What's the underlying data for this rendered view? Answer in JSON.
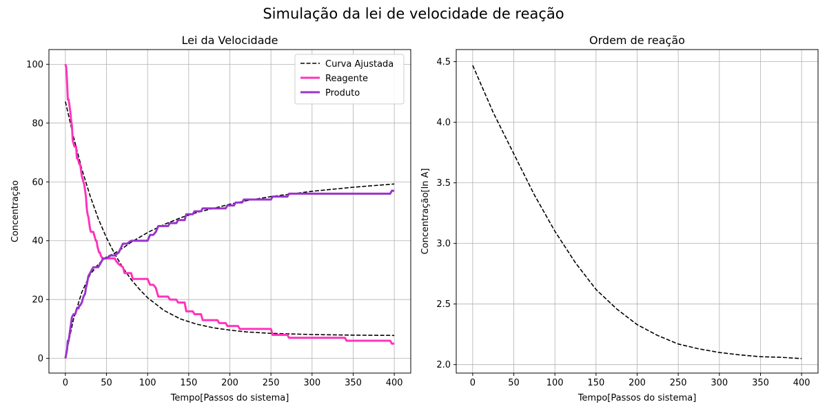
{
  "figure": {
    "suptitle": "Simulação da lei de velocidade de reação"
  },
  "chart_data": [
    {
      "type": "line",
      "title": "Lei da Velocidade",
      "xlabel": "Tempo[Passos do sistema]",
      "ylabel": "Concentração",
      "xlim": [
        -20,
        420
      ],
      "ylim": [
        -5,
        105
      ],
      "xticks": [
        0,
        50,
        100,
        150,
        200,
        250,
        300,
        350,
        400
      ],
      "yticks": [
        0,
        20,
        40,
        60,
        80,
        100
      ],
      "grid": true,
      "legend_position": "top-right",
      "series": [
        {
          "name": "Curva Ajustada",
          "style": "dashed",
          "color": "#000000",
          "x": [
            0,
            10,
            20,
            30,
            40,
            50,
            60,
            70,
            80,
            90,
            100,
            120,
            140,
            160,
            180,
            200,
            220,
            250,
            300,
            350,
            400
          ],
          "y": [
            87.3,
            75.2,
            64.4,
            55.3,
            47.5,
            41.0,
            35.5,
            30.8,
            26.8,
            23.5,
            20.6,
            16.3,
            13.4,
            11.6,
            10.4,
            9.6,
            9.0,
            8.5,
            8.1,
            7.9,
            7.8
          ]
        },
        {
          "name": "",
          "style": "dashed",
          "color": "#000000",
          "x": [
            0,
            10,
            20,
            30,
            40,
            50,
            60,
            70,
            80,
            100,
            120,
            140,
            160,
            180,
            200,
            220,
            250,
            300,
            350,
            400
          ],
          "y": [
            0.5,
            13.5,
            22.5,
            28.5,
            32.0,
            34.5,
            35.8,
            37.5,
            39.5,
            42.8,
            45.5,
            47.8,
            49.6,
            51.0,
            52.4,
            53.6,
            55.0,
            56.8,
            58.2,
            59.3
          ]
        },
        {
          "name": "Reagente",
          "style": "solid",
          "color": "#ff33bb",
          "x": [
            0,
            1,
            2,
            3,
            4,
            5,
            6,
            7,
            8,
            9,
            10,
            11,
            12,
            13,
            14,
            15,
            16,
            17,
            18,
            19,
            20,
            21,
            22,
            23,
            24,
            25,
            26,
            27,
            28,
            29,
            30,
            31,
            32,
            33,
            34,
            35,
            36,
            37,
            38,
            39,
            40,
            41,
            42,
            43,
            45,
            47,
            48,
            50,
            60,
            62,
            65,
            70,
            72,
            80,
            82,
            85,
            100,
            103,
            107,
            110,
            113,
            125,
            127,
            135,
            137,
            145,
            147,
            150,
            155,
            157,
            165,
            167,
            185,
            187,
            195,
            197,
            210,
            212,
            250,
            252,
            270,
            272,
            315,
            317,
            340,
            342,
            395,
            397,
            400
          ],
          "y": [
            100,
            99,
            94,
            88,
            88,
            86,
            84,
            81,
            79,
            74,
            73,
            72,
            72,
            72,
            68,
            68,
            67,
            66,
            66,
            64,
            62,
            61,
            60,
            59,
            57,
            55,
            51,
            49,
            48,
            46,
            44,
            43,
            43,
            43,
            43,
            42,
            41,
            40,
            40,
            38,
            37,
            36,
            36,
            35,
            34,
            34,
            34,
            34,
            34,
            33,
            32,
            31,
            29,
            29,
            27,
            27,
            27,
            25,
            25,
            24,
            21,
            21,
            20,
            20,
            19,
            19,
            16,
            16,
            16,
            15,
            15,
            13,
            13,
            12,
            12,
            11,
            11,
            10,
            10,
            8,
            8,
            7,
            7,
            7,
            7,
            6,
            6,
            5,
            5
          ]
        },
        {
          "name": "Produto",
          "style": "solid",
          "color": "#9933cc",
          "x": [
            0,
            2,
            3,
            4,
            5,
            6,
            7,
            8,
            10,
            11,
            12,
            14,
            15,
            16,
            17,
            18,
            20,
            21,
            22,
            24,
            25,
            26,
            28,
            30,
            32,
            34,
            36,
            38,
            40,
            42,
            44,
            46,
            50,
            55,
            60,
            65,
            70,
            75,
            80,
            100,
            103,
            107,
            110,
            113,
            120,
            125,
            127,
            135,
            137,
            145,
            147,
            150,
            155,
            157,
            165,
            167,
            175,
            177,
            195,
            197,
            205,
            207,
            215,
            217,
            230,
            232,
            250,
            252,
            270,
            272,
            300,
            395,
            397,
            400
          ],
          "y": [
            0,
            3,
            6,
            6,
            8,
            10,
            12,
            14,
            15,
            15,
            15,
            17,
            17,
            17,
            18,
            18,
            19,
            20,
            21,
            22,
            24,
            25,
            28,
            29,
            30,
            31,
            31,
            31,
            31,
            32,
            33,
            34,
            34,
            35,
            35,
            36,
            39,
            39,
            40,
            40,
            42,
            42,
            43,
            45,
            45,
            45,
            46,
            46,
            47,
            47,
            49,
            49,
            49,
            50,
            50,
            51,
            51,
            51,
            51,
            52,
            52,
            53,
            53,
            54,
            54,
            54,
            54,
            55,
            55,
            56,
            56,
            56,
            57,
            57
          ]
        }
      ]
    },
    {
      "type": "line",
      "title": "Ordem de reação",
      "xlabel": "Tempo[Passos do sistema]",
      "ylabel": "Concentração[ln A]",
      "xlim": [
        -20,
        420
      ],
      "ylim": [
        1.93,
        4.6
      ],
      "xticks": [
        0,
        50,
        100,
        150,
        200,
        250,
        300,
        350,
        400
      ],
      "yticks": [
        2.0,
        2.5,
        3.0,
        3.5,
        4.0,
        4.5
      ],
      "grid": true,
      "series": [
        {
          "name": "",
          "style": "dashed",
          "color": "#000000",
          "x": [
            0,
            25,
            50,
            75,
            100,
            125,
            150,
            175,
            200,
            225,
            250,
            275,
            300,
            325,
            350,
            375,
            400
          ],
          "y": [
            4.47,
            4.08,
            3.74,
            3.4,
            3.1,
            2.84,
            2.62,
            2.46,
            2.33,
            2.24,
            2.17,
            2.13,
            2.1,
            2.08,
            2.065,
            2.06,
            2.05
          ]
        }
      ]
    }
  ]
}
